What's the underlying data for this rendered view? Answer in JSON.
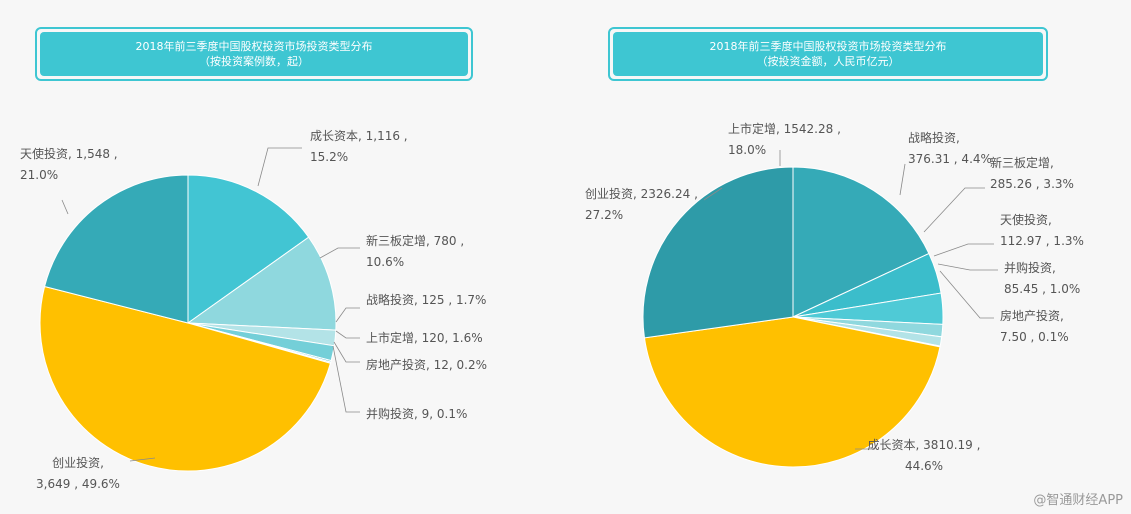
{
  "watermark": "@智通财经APP",
  "chart_data": [
    {
      "type": "pie",
      "title": "2018年前三季度中国股权投资市场投资类型分布",
      "subtitle": "（按投资案例数，起）",
      "slices": [
        {
          "name": "成长资本",
          "value": 1116,
          "percent": 15.2,
          "color": "#42c5d3",
          "label": [
            "成长资本, 1,116 ,",
            "15.2%"
          ]
        },
        {
          "name": "新三板定增",
          "value": 780,
          "percent": 10.6,
          "color": "#8fd8de",
          "label": [
            "新三板定增, 780 ,",
            "10.6%"
          ]
        },
        {
          "name": "战略投资",
          "value": 125,
          "percent": 1.7,
          "color": "#b3e3e7",
          "label": [
            "战略投资, 125 , 1.7%"
          ]
        },
        {
          "name": "上市定增",
          "value": 120,
          "percent": 1.6,
          "color": "#74cfd8",
          "label": [
            "上市定增, 120, 1.6%"
          ]
        },
        {
          "name": "房地产投资",
          "value": 12,
          "percent": 0.2,
          "color": "#5ab9c4",
          "label": [
            "房地产投资, 12, 0.2%"
          ]
        },
        {
          "name": "并购投资",
          "value": 9,
          "percent": 0.1,
          "color": "#3ea8b5",
          "label": [
            "并购投资, 9, 0.1%"
          ]
        },
        {
          "name": "创业投资",
          "value": 3649,
          "percent": 49.6,
          "color": "#ffc000",
          "label": [
            "创业投资,",
            "3,649 , 49.6%"
          ]
        },
        {
          "name": "天使投资",
          "value": 1548,
          "percent": 21.0,
          "color": "#35aab7",
          "label": [
            "天使投资, 1,548 ,",
            "21.0%"
          ]
        }
      ]
    },
    {
      "type": "pie",
      "title": "2018年前三季度中国股权投资市场投资类型分布",
      "subtitle": "（按投资金额，人民币亿元）",
      "slices": [
        {
          "name": "上市定增",
          "value": 1542.28,
          "percent": 18.0,
          "color": "#35aab7",
          "label": [
            "上市定增, 1542.28 ,",
            "18.0%"
          ]
        },
        {
          "name": "战略投资",
          "value": 376.31,
          "percent": 4.4,
          "color": "#3bbdcb",
          "label": [
            "战略投资,",
            "376.31 , 4.4%"
          ]
        },
        {
          "name": "新三板定增",
          "value": 285.26,
          "percent": 3.3,
          "color": "#4fcad6",
          "label": [
            "新三板定增,",
            "285.26 , 3.3%"
          ]
        },
        {
          "name": "天使投资",
          "value": 112.97,
          "percent": 1.3,
          "color": "#8fd8de",
          "label": [
            "天使投资,",
            "112.97 , 1.3%"
          ]
        },
        {
          "name": "并购投资",
          "value": 85.45,
          "percent": 1.0,
          "color": "#b3e3e7",
          "label": [
            "并购投资,",
            "85.45 , 1.0%"
          ]
        },
        {
          "name": "房地产投资",
          "value": 7.5,
          "percent": 0.1,
          "color": "#c9ecef",
          "label": [
            "房地产投资,",
            "7.50 , 0.1%"
          ]
        },
        {
          "name": "成长资本",
          "value": 3810.19,
          "percent": 44.6,
          "color": "#ffc000",
          "label": [
            "成长资本, 3810.19 ,",
            "44.6%"
          ]
        },
        {
          "name": "创业投资",
          "value": 2326.24,
          "percent": 27.2,
          "color": "#2e9ba8",
          "label": [
            "创业投资, 2326.24 ,",
            "27.2%"
          ]
        }
      ]
    }
  ]
}
